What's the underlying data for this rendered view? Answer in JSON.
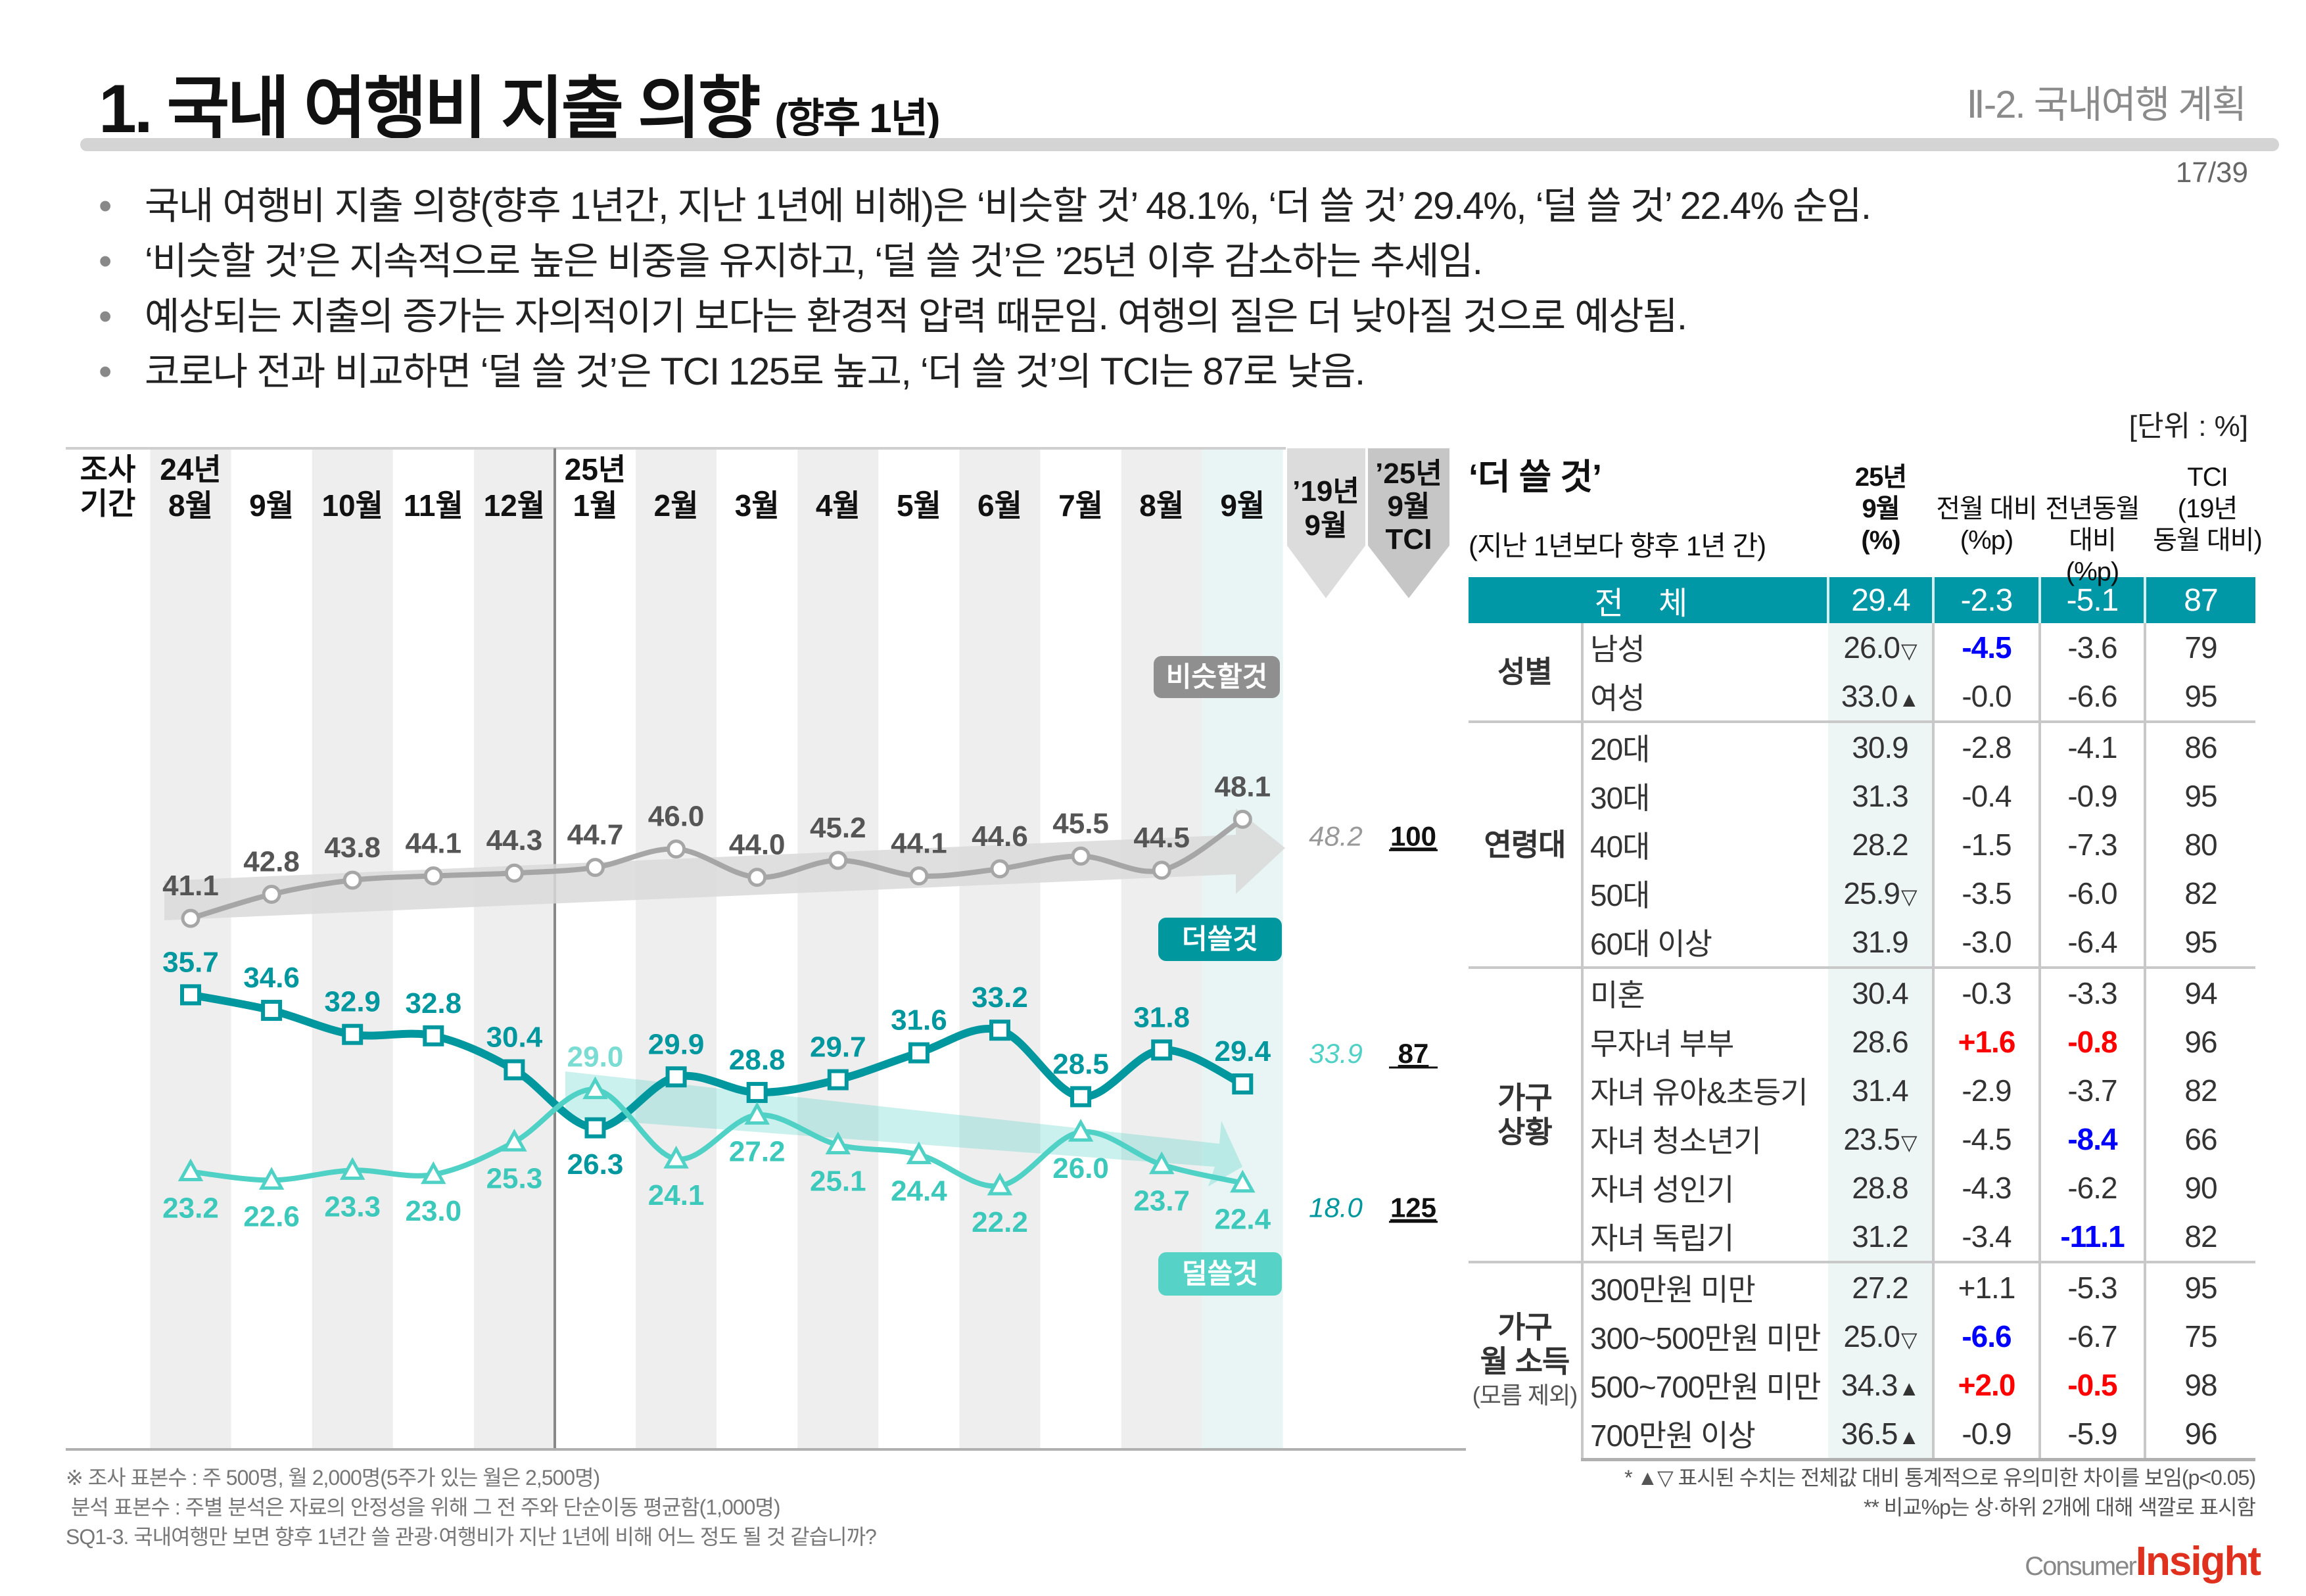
{
  "header": {
    "title": "1. 국내 여행비 지출 의향",
    "title_sub": "(향후 1년)",
    "section": "Ⅱ-2. 국내여행 계획",
    "page": "17/39"
  },
  "bullets": [
    "국내 여행비 지출 의향(향후 1년간, 지난 1년에 비해)은 ‘비슷할 것’ 48.1%, ‘더 쓸 것’ 29.4%, ‘덜 쓸 것’ 22.4% 순임.",
    "‘비슷할 것’은 지속적으로 높은 비중을 유지하고, ‘덜 쓸 것’은 ’25년 이후 감소하는 추세임.",
    "예상되는 지출의 증가는 자의적이기 보다는 환경적 압력 때문임. 여행의 질은 더 낮아질 것으로 예상됨.",
    "코로나 전과 비교하면 ‘덜 쓸 것’은 TCI 125로 높고, ‘더 쓸 것’의 TCI는 87로 낮음."
  ],
  "bullet_marker": "•",
  "unit": "[단위 : %]",
  "chart_data": {
    "type": "line",
    "period_label": "조사\n기간",
    "year_labels": [
      {
        "label": "24년",
        "index": 0
      },
      {
        "label": "25년",
        "index": 5
      }
    ],
    "categories": [
      "8월",
      "9월",
      "10월",
      "11월",
      "12월",
      "1월",
      "2월",
      "3월",
      "4월",
      "5월",
      "6월",
      "7월",
      "8월",
      "9월"
    ],
    "series": [
      {
        "name": "비슷할것",
        "color": "#a6a6a6",
        "values": [
          41.1,
          42.8,
          43.8,
          44.1,
          44.3,
          44.7,
          46.0,
          44.0,
          45.2,
          44.1,
          44.6,
          45.5,
          44.5,
          48.1
        ]
      },
      {
        "name": "더쓸것",
        "color": "#00979f",
        "values": [
          35.7,
          34.6,
          32.9,
          32.8,
          30.4,
          26.3,
          29.9,
          28.8,
          29.7,
          31.6,
          33.2,
          28.5,
          31.8,
          29.4
        ]
      },
      {
        "name": "덜쓸것",
        "color": "#4fd1c5",
        "values": [
          23.2,
          22.6,
          23.3,
          23.0,
          25.3,
          29.0,
          24.1,
          27.2,
          25.1,
          24.4,
          22.2,
          26.0,
          23.7,
          22.4
        ]
      }
    ],
    "comparison": {
      "col19_header": "’19년\n9월",
      "tci_header": "’25년\n9월\nTCI",
      "values_2019_09": [
        "48.2",
        "33.9",
        "18.0"
      ],
      "tci": [
        "100",
        "87",
        "125"
      ]
    },
    "grid": false,
    "legend": "inline-badges"
  },
  "table": {
    "title": "‘더 쓸 것’",
    "subtitle": "(지난 1년보다 향후 1년 간)",
    "columns": [
      "25년\n9월\n(%)",
      "전월 대비\n(%p)",
      "전년동월\n대비 (%p)",
      "TCI\n(19년\n동월 대비)"
    ],
    "total": {
      "label": "전 체",
      "value": "29.4",
      "mom": "-2.3",
      "yoy": "-5.1",
      "tci": "87"
    },
    "groups": [
      {
        "name": "성별",
        "note": "",
        "rows": [
          {
            "label": "남성",
            "value": "26.0",
            "sig": "▽",
            "mom": "-4.5",
            "mom_color": "#0000ff",
            "yoy": "-3.6",
            "tci": "79"
          },
          {
            "label": "여성",
            "value": "33.0",
            "sig": "▲",
            "mom": "-0.0",
            "yoy": "-6.6",
            "tci": "95"
          }
        ]
      },
      {
        "name": "연령대",
        "note": "",
        "rows": [
          {
            "label": "20대",
            "value": "30.9",
            "mom": "-2.8",
            "yoy": "-4.1",
            "tci": "86"
          },
          {
            "label": "30대",
            "value": "31.3",
            "mom": "-0.4",
            "yoy": "-0.9",
            "tci": "95"
          },
          {
            "label": "40대",
            "value": "28.2",
            "mom": "-1.5",
            "yoy": "-7.3",
            "tci": "80"
          },
          {
            "label": "50대",
            "value": "25.9",
            "sig": "▽",
            "mom": "-3.5",
            "yoy": "-6.0",
            "tci": "82"
          },
          {
            "label": "60대 이상",
            "value": "31.9",
            "mom": "-3.0",
            "yoy": "-6.4",
            "tci": "95"
          }
        ]
      },
      {
        "name": "가구\n상황",
        "note": "",
        "rows": [
          {
            "label": "미혼",
            "value": "30.4",
            "mom": "-0.3",
            "yoy": "-3.3",
            "tci": "94"
          },
          {
            "label": "무자녀 부부",
            "value": "28.6",
            "mom": "+1.6",
            "mom_color": "#ff0000",
            "yoy": "-0.8",
            "yoy_color": "#ff0000",
            "tci": "96"
          },
          {
            "label": "자녀 유아&초등기",
            "value": "31.4",
            "mom": "-2.9",
            "yoy": "-3.7",
            "tci": "82"
          },
          {
            "label": "자녀 청소년기",
            "value": "23.5",
            "sig": "▽",
            "mom": "-4.5",
            "yoy": "-8.4",
            "yoy_color": "#0000ff",
            "tci": "66"
          },
          {
            "label": "자녀 성인기",
            "value": "28.8",
            "mom": "-4.3",
            "yoy": "-6.2",
            "tci": "90"
          },
          {
            "label": "자녀 독립기",
            "value": "31.2",
            "mom": "-3.4",
            "yoy": "-11.1",
            "yoy_color": "#0000ff",
            "tci": "82"
          }
        ]
      },
      {
        "name": "가구\n월 소득",
        "note": "(모름 제외)",
        "rows": [
          {
            "label": "300만원 미만",
            "value": "27.2",
            "mom": "+1.1",
            "yoy": "-5.3",
            "tci": "95"
          },
          {
            "label": "300~500만원 미만",
            "value": "25.0",
            "sig": "▽",
            "mom": "-6.6",
            "mom_color": "#0000ff",
            "yoy": "-6.7",
            "tci": "75"
          },
          {
            "label": "500~700만원 미만",
            "value": "34.3",
            "sig": "▲",
            "mom": "+2.0",
            "mom_color": "#ff0000",
            "yoy": "-0.5",
            "yoy_color": "#ff0000",
            "tci": "98"
          },
          {
            "label": "700만원 이상",
            "value": "36.5",
            "sig": "▲",
            "mom": "-0.9",
            "yoy": "-5.9",
            "tci": "96"
          }
        ]
      }
    ]
  },
  "footnotes": {
    "left": [
      "※ 조사 표본수 : 주 500명, 월 2,000명(5주가 있는 월은 2,500명)",
      " 분석 표본수 : 주별 분석은 자료의 안정성을 위해 그 전 주와 단순이동 평균함(1,000명)",
      "SQ1-3. 국내여행만 보면 향후 1년간 쓸 관광·여행비가 지난 1년에 비해 어느 정도 될 것 같습니까?"
    ],
    "right": [
      "* ▲▽ 표시된 수치는 전체값 대비 통계적으로 유의미한 차이를 보임(p<0.05)",
      "** 비교%p는 상·하위 2개에 대해 색깔로 표시함"
    ]
  },
  "logo": {
    "part1": "Consumer",
    "part2": "Insight"
  }
}
